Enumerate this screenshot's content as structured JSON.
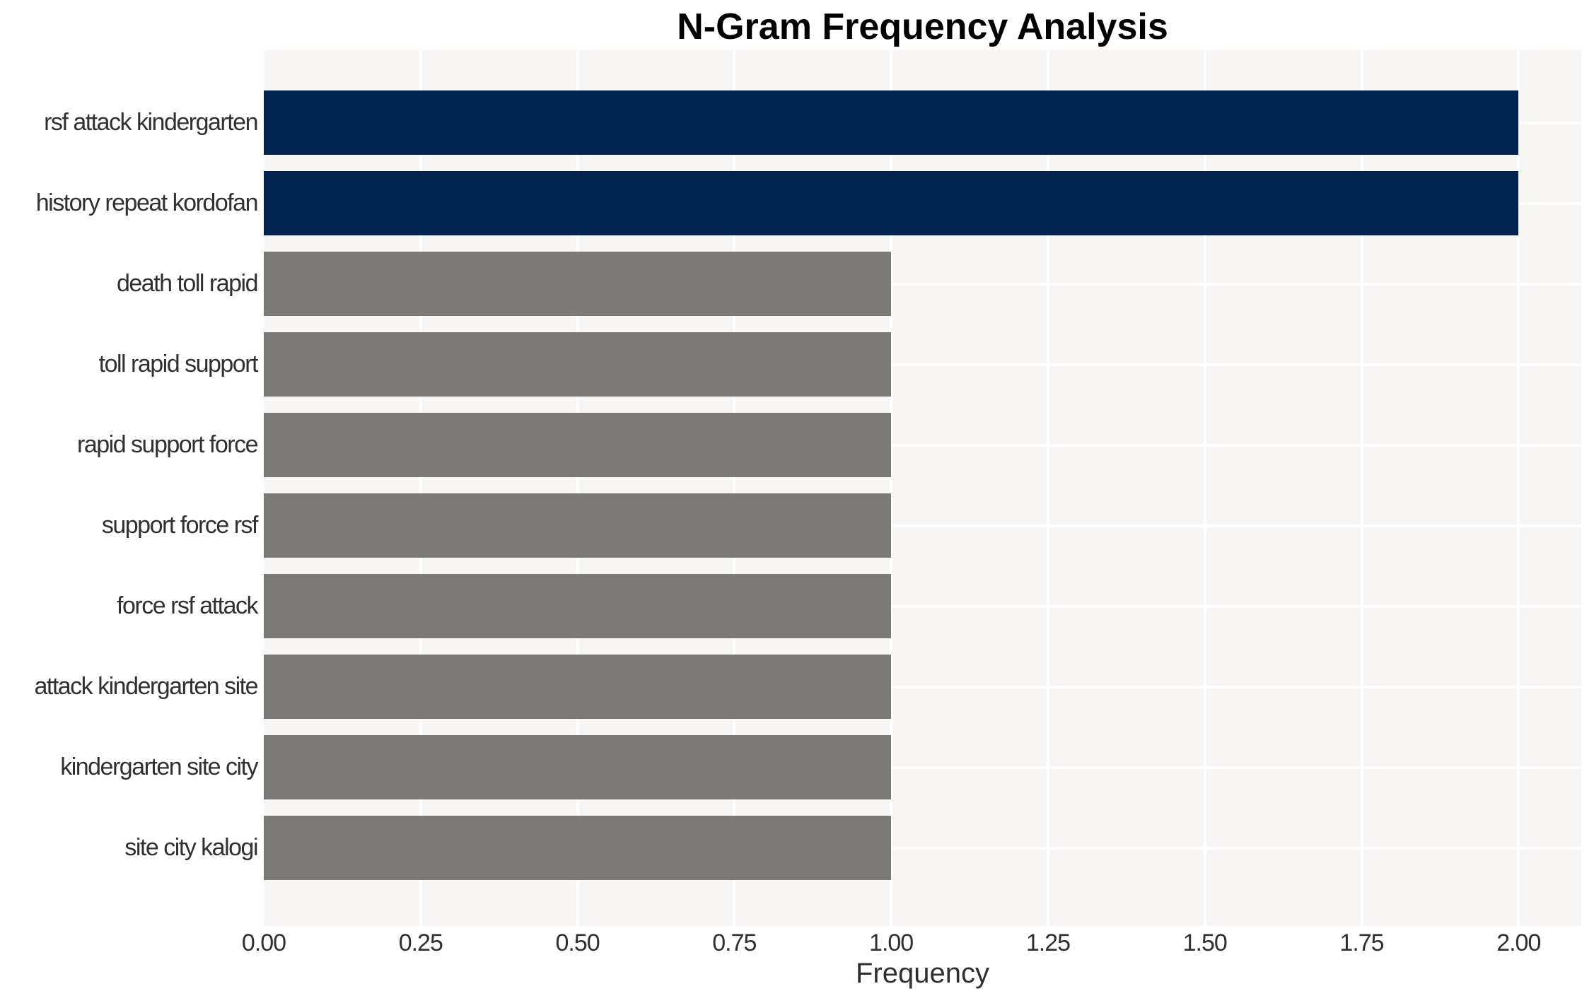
{
  "chart_data": {
    "type": "bar",
    "orientation": "horizontal",
    "title": "N-Gram Frequency Analysis",
    "xlabel": "Frequency",
    "ylabel": "",
    "categories": [
      "rsf attack kindergarten",
      "history repeat kordofan",
      "death toll rapid",
      "toll rapid support",
      "rapid support force",
      "support force rsf",
      "force rsf attack",
      "attack kindergarten site",
      "kindergarten site city",
      "site city kalogi"
    ],
    "values": [
      2,
      2,
      1,
      1,
      1,
      1,
      1,
      1,
      1,
      1
    ],
    "bar_colors": [
      "#022250",
      "#022250",
      "#7b7a77",
      "#7b7a77",
      "#7b7a77",
      "#7b7a77",
      "#7b7a77",
      "#7b7a77",
      "#7b7a77",
      "#7b7a77"
    ],
    "xlim": [
      0,
      2.1
    ],
    "xticks": [
      0,
      0.25,
      0.5,
      0.75,
      1.0,
      1.25,
      1.5,
      1.75,
      2.0
    ],
    "xtick_labels": [
      "0.00",
      "0.25",
      "0.50",
      "0.75",
      "1.00",
      "1.25",
      "1.50",
      "1.75",
      "2.00"
    ],
    "grid": true,
    "legend": false,
    "colors": {
      "highlight_bar": "#022250",
      "default_bar": "#7b7a77",
      "plot_background": "#f7f6f4",
      "gridline": "#ffffff",
      "tick_text": "#303030",
      "title_text": "#000000"
    }
  }
}
